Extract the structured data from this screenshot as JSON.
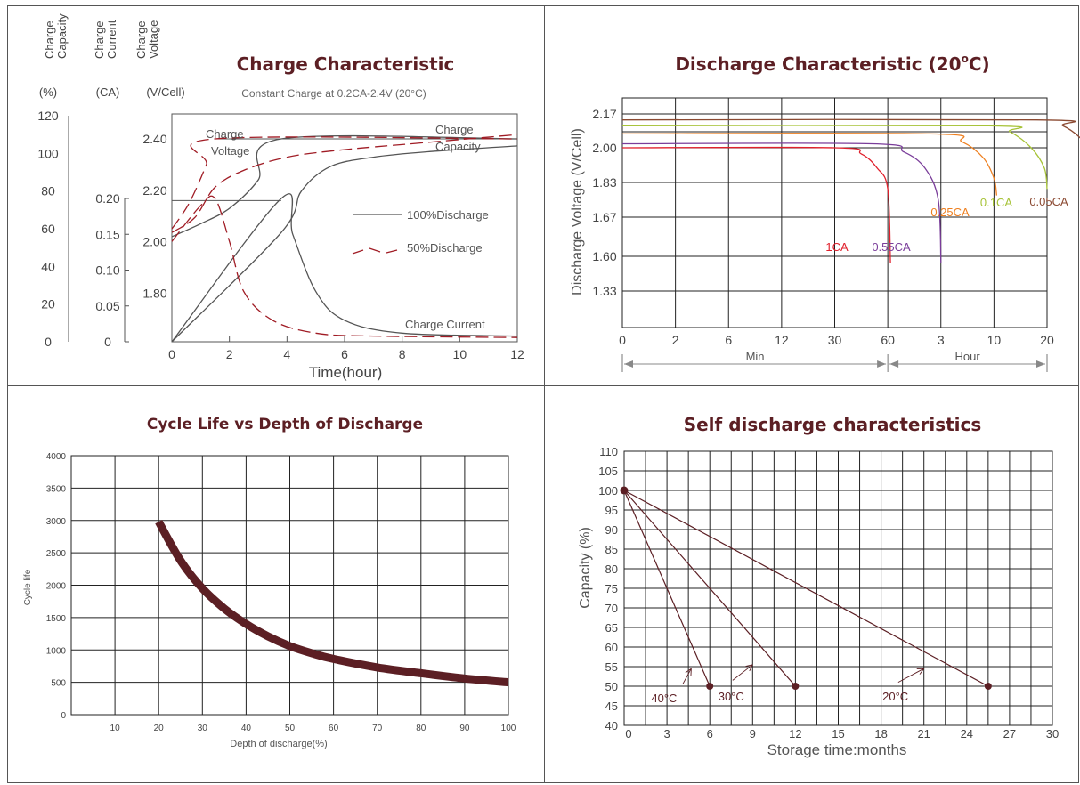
{
  "colors": {
    "maroon": "#5c1f24",
    "dark_red": "#a01c25",
    "grey": "#555555",
    "grid": "#222222"
  },
  "chart_data": [
    {
      "id": "charge",
      "type": "line",
      "title": "Charge Characteristic",
      "subtitle": "Constant Charge at 0.2CA-2.4V  (20°C)",
      "xlabel": "Time(hour)",
      "xticks": [
        "0",
        "2",
        "4",
        "6",
        "8",
        "10",
        "12"
      ],
      "xlim": [
        0,
        12
      ],
      "axes": [
        {
          "head": [
            "Charge",
            "Capacity"
          ],
          "unit": "(%)",
          "ticks": [
            "120",
            "100",
            "80",
            "60",
            "40",
            "20",
            "0"
          ],
          "range": [
            0,
            120
          ]
        },
        {
          "head": [
            "Charge",
            "Current"
          ],
          "unit": "(CA)",
          "ticks": [
            "0.20",
            "0.15",
            "0.10",
            "0.05",
            "0"
          ],
          "range": [
            0,
            0.2
          ]
        },
        {
          "head": [
            "Charge",
            "Voltage"
          ],
          "unit": "(V/Cell)",
          "ticks": [
            "2.40",
            "2.20",
            "2.00",
            "1.80"
          ],
          "range": [
            1.6,
            2.45
          ]
        }
      ],
      "annotations": [
        "Charge Voltage",
        "Charge Capacity",
        "Charge Current"
      ],
      "legend": [
        {
          "label": "100%Discharge",
          "style": "solid",
          "color": "#555555"
        },
        {
          "label": "50%Discharge",
          "style": "dashed",
          "color": "#a01c25"
        }
      ],
      "series": [
        {
          "name": "100%Discharge",
          "quantity": "voltage",
          "x": [
            0,
            1,
            2,
            3,
            3.8,
            12
          ],
          "y": [
            2.02,
            2.07,
            2.13,
            2.24,
            2.4,
            2.4
          ]
        },
        {
          "name": "100%Discharge",
          "quantity": "current",
          "x": [
            0,
            3.8,
            4.2,
            5,
            6,
            8,
            12
          ],
          "y": [
            0,
            0.2,
            0.15,
            0.07,
            0.03,
            0.012,
            0.008
          ]
        },
        {
          "name": "100%Discharge",
          "quantity": "capacity",
          "x": [
            0,
            3.8,
            4.5,
            5.5,
            7,
            9,
            12
          ],
          "y": [
            0,
            58,
            80,
            93,
            98,
            101,
            104
          ]
        },
        {
          "name": "50%Discharge",
          "quantity": "voltage",
          "x": [
            0,
            0.6,
            1.2,
            1.5,
            12
          ],
          "y": [
            2.05,
            2.15,
            2.3,
            2.4,
            2.4
          ]
        },
        {
          "name": "50%Discharge",
          "quantity": "current",
          "x": [
            0,
            1.0,
            1.5,
            2.0,
            2.5,
            3.5,
            5,
            7,
            12
          ],
          "y": [
            0.14,
            0.19,
            0.2,
            0.14,
            0.07,
            0.03,
            0.012,
            0.008,
            0.006
          ]
        },
        {
          "name": "50%Discharge",
          "quantity": "capacity",
          "x": [
            0,
            0.8,
            1.5,
            2.5,
            4,
            6,
            9,
            12
          ],
          "y": [
            58,
            66,
            82,
            91,
            98,
            102,
            106,
            110
          ]
        }
      ]
    },
    {
      "id": "discharge",
      "type": "line",
      "title": "Discharge Characteristic (20°C)",
      "ylabel": "Discharge Voltage (V/Cell)",
      "yticks": [
        "2.17",
        "2.00",
        "1.83",
        "1.67",
        "1.60",
        "1.33"
      ],
      "xticks": [
        "0",
        "2",
        "6",
        "12",
        "30",
        "60",
        "3",
        "10",
        "20"
      ],
      "xgroups": [
        "Min",
        "Hour"
      ],
      "series": [
        {
          "name": "1CA",
          "color": "#e0202c",
          "x": [
            0,
            4,
            4.5,
            4.8,
            5,
            5.05
          ],
          "y": [
            2.0,
            2.0,
            1.97,
            1.9,
            1.8,
            1.55
          ]
        },
        {
          "name": "0.55CA",
          "color": "#7a3d9a",
          "x": [
            0,
            4.7,
            5.3,
            5.7,
            5.95,
            6.0
          ],
          "y": [
            2.02,
            2.02,
            1.98,
            1.9,
            1.75,
            1.55
          ]
        },
        {
          "name": "0.25CA",
          "color": "#ee7f1f",
          "x": [
            0,
            5.8,
            6.4,
            6.8,
            7.0,
            7.05
          ],
          "y": [
            2.07,
            2.07,
            2.03,
            1.95,
            1.85,
            1.77
          ]
        },
        {
          "name": "0.1CA",
          "color": "#a7c338",
          "x": [
            0,
            6.9,
            7.3,
            7.7,
            7.95,
            8.0
          ],
          "y": [
            2.11,
            2.11,
            2.08,
            2.0,
            1.9,
            1.8
          ]
        },
        {
          "name": "0.05CA",
          "color": "#8b4a32",
          "x": [
            0,
            7.8,
            8.3,
            8.7,
            8.95,
            9.05
          ],
          "y": [
            2.14,
            2.14,
            2.11,
            2.03,
            1.93,
            1.83
          ]
        }
      ]
    },
    {
      "id": "cycle",
      "type": "line",
      "title": "Cycle Life vs Depth of Discharge",
      "xlabel": "Depth of discharge(%)",
      "ylabel": "Cycle life",
      "xticks": [
        "10",
        "20",
        "30",
        "40",
        "50",
        "60",
        "70",
        "80",
        "90",
        "100"
      ],
      "yticks": [
        "0",
        "500",
        "1000",
        "1500",
        "2000",
        "2500",
        "3000",
        "3500",
        "4000"
      ],
      "xlim": [
        0,
        100
      ],
      "ylim": [
        0,
        4000
      ],
      "series": [
        {
          "x": [
            20,
            25,
            30,
            35,
            40,
            45,
            50,
            55,
            60,
            70,
            80,
            90,
            100
          ],
          "y": [
            2980,
            2380,
            1950,
            1640,
            1400,
            1210,
            1060,
            950,
            860,
            730,
            640,
            560,
            500
          ]
        }
      ]
    },
    {
      "id": "self",
      "type": "line",
      "title": "Self discharge characteristics",
      "xlabel": "Storage time:months",
      "ylabel": "Capacity (%)",
      "xticks": [
        "0",
        "3",
        "6",
        "9",
        "12",
        "15",
        "18",
        "21",
        "24",
        "27",
        "30"
      ],
      "yticks": [
        "40",
        "45",
        "50",
        "55",
        "60",
        "65",
        "70",
        "75",
        "80",
        "85",
        "90",
        "95",
        "100",
        "105",
        "110"
      ],
      "xlim": [
        0,
        30
      ],
      "ylim": [
        40,
        110
      ],
      "series": [
        {
          "name": "40°C",
          "x": [
            0,
            6
          ],
          "y": [
            100,
            50
          ]
        },
        {
          "name": "30°C",
          "x": [
            0,
            12
          ],
          "y": [
            100,
            50
          ]
        },
        {
          "name": "20°C",
          "x": [
            0,
            25.5
          ],
          "y": [
            100,
            50
          ]
        }
      ]
    }
  ]
}
